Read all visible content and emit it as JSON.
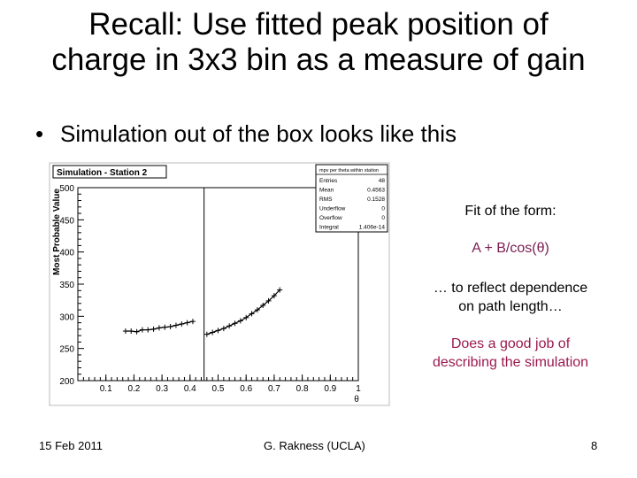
{
  "slide": {
    "title_line1": "Recall:  Use fitted peak position of",
    "title_line2": "charge in 3x3 bin as a measure of gain",
    "bullet": "Simulation out of the box looks like this"
  },
  "annotations": {
    "fit_label": "Fit of the form:",
    "formula": "A + B/cos(θ)",
    "reflect_line1": "… to reflect dependence",
    "reflect_line2": "on path length…",
    "good_line1": "Does a good job of",
    "good_line2": "describing the simulation"
  },
  "footer": {
    "date": "15 Feb 2011",
    "author": "G. Rakness (UCLA)",
    "page": "8"
  },
  "colors": {
    "accent": "#9b1a4e",
    "formula_color": "#7a1d52"
  },
  "chart_data": {
    "type": "scatter",
    "title": "Simulation - Station 2",
    "xlabel": "θ",
    "ylabel": "Most Probable Value",
    "xlim": [
      0,
      1
    ],
    "ylim": [
      200,
      500
    ],
    "xticks": [
      "0.1",
      "0.2",
      "0.3",
      "0.4",
      "0.5",
      "0.6",
      "0.7",
      "0.8",
      "0.9",
      "1"
    ],
    "yticks": [
      "200",
      "250",
      "300",
      "350",
      "400",
      "450",
      "500"
    ],
    "vline_x": 0.45,
    "stats_box": {
      "header": "mpv per theta within station",
      "rows": [
        {
          "label": "Entries",
          "value": "48"
        },
        {
          "label": "Mean",
          "value": "0.4563"
        },
        {
          "label": "RMS",
          "value": "0.1528"
        },
        {
          "label": "Underflow",
          "value": "0"
        },
        {
          "label": "Overflow",
          "value": "0"
        },
        {
          "label": "Integral",
          "value": "1.406e-14"
        }
      ]
    },
    "series": [
      {
        "x": [
          0.17,
          0.19,
          0.21,
          0.23,
          0.25,
          0.27,
          0.29,
          0.31,
          0.33,
          0.35,
          0.37,
          0.39,
          0.41
        ],
        "y": [
          277,
          277,
          276,
          279,
          279,
          280,
          282,
          283,
          284,
          286,
          288,
          290,
          292
        ]
      },
      {
        "x": [
          0.46,
          0.48,
          0.5,
          0.52,
          0.54,
          0.56,
          0.58,
          0.6,
          0.62,
          0.64,
          0.66,
          0.68,
          0.7,
          0.72
        ],
        "y": [
          272,
          275,
          278,
          281,
          285,
          289,
          293,
          298,
          304,
          310,
          317,
          324,
          332,
          341
        ]
      }
    ]
  }
}
